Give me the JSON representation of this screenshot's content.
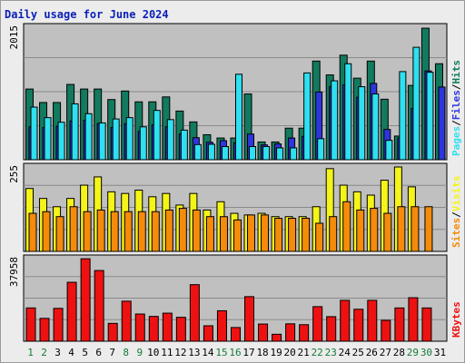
{
  "title": "Daily usage for June 2024",
  "colors": {
    "hits": "#127a5e",
    "files": "#2e35dd",
    "pages": "#2ee0f0",
    "visits": "#f4f419",
    "sites": "#f58b0a",
    "kbytes": "#ee1111",
    "plot_bg": "#c0c0c0",
    "frame_bg": "#ececec",
    "weekend_day": "#157a3a",
    "weekday": "#000000"
  },
  "chart_data": [
    {
      "type": "bar",
      "panel": "hits-files-pages",
      "categories": [
        "1",
        "2",
        "3",
        "4",
        "5",
        "6",
        "7",
        "8",
        "9",
        "10",
        "11",
        "12",
        "13",
        "14",
        "15",
        "16",
        "17",
        "18",
        "19",
        "20",
        "21",
        "22",
        "23",
        "24",
        "25",
        "26",
        "27",
        "28",
        "29",
        "30",
        "31"
      ],
      "ymax_label": "2015",
      "ylim": [
        0,
        2015
      ],
      "right_labels": [
        "Pages",
        "Files",
        "Hits"
      ],
      "series": [
        {
          "name": "Hits",
          "values": [
            1075,
            870,
            870,
            1145,
            1075,
            1075,
            915,
            1045,
            880,
            880,
            955,
            740,
            575,
            380,
            330,
            330,
            1000,
            270,
            270,
            480,
            480,
            1500,
            1290,
            1590,
            1240,
            1500,
            920,
            360,
            1130,
            2000,
            1460
          ]
        },
        {
          "name": "Files",
          "values": [
            500,
            490,
            510,
            590,
            600,
            550,
            490,
            550,
            430,
            530,
            500,
            390,
            335,
            265,
            290,
            260,
            390,
            225,
            240,
            330,
            355,
            1030,
            1110,
            1140,
            950,
            1160,
            460,
            330,
            780,
            1350,
            1105
          ]
        },
        {
          "name": "Pages",
          "values": [
            800,
            640,
            570,
            850,
            700,
            560,
            620,
            640,
            500,
            750,
            610,
            450,
            230,
            235,
            200,
            1300,
            200,
            200,
            180,
            180,
            1320,
            320,
            1200,
            1460,
            1110,
            1000,
            295,
            1340,
            1710,
            1330,
            0
          ]
        }
      ]
    },
    {
      "type": "bar",
      "panel": "visits-sites",
      "categories": [
        "1",
        "2",
        "3",
        "4",
        "5",
        "6",
        "7",
        "8",
        "9",
        "10",
        "11",
        "12",
        "13",
        "14",
        "15",
        "16",
        "17",
        "18",
        "19",
        "20",
        "21",
        "22",
        "23",
        "24",
        "25",
        "26",
        "27",
        "28",
        "29",
        "30",
        "31"
      ],
      "ymax_label": "255",
      "ylim": [
        0,
        255
      ],
      "right_labels": [
        "Sites",
        "Visits"
      ],
      "series": [
        {
          "name": "Visits",
          "values": [
            190,
            160,
            135,
            160,
            200,
            225,
            180,
            175,
            185,
            165,
            175,
            140,
            175,
            125,
            150,
            115,
            110,
            115,
            105,
            105,
            105,
            135,
            250,
            200,
            180,
            170,
            215,
            255,
            195,
            0,
            0
          ]
        },
        {
          "name": "Sites",
          "values": [
            115,
            120,
            105,
            135,
            120,
            125,
            120,
            120,
            120,
            120,
            125,
            130,
            125,
            105,
            105,
            95,
            110,
            110,
            100,
            100,
            100,
            85,
            105,
            150,
            125,
            130,
            115,
            135,
            135,
            135,
            0
          ]
        }
      ]
    },
    {
      "type": "bar",
      "panel": "kbytes",
      "categories": [
        "1",
        "2",
        "3",
        "4",
        "5",
        "6",
        "7",
        "8",
        "9",
        "10",
        "11",
        "12",
        "13",
        "14",
        "15",
        "16",
        "17",
        "18",
        "19",
        "20",
        "21",
        "22",
        "23",
        "24",
        "25",
        "26",
        "27",
        "28",
        "29",
        "30",
        "31"
      ],
      "ymax_label": "37958",
      "ylim": [
        0,
        37958
      ],
      "right_labels": [
        "KBytes"
      ],
      "series": [
        {
          "name": "KBytes",
          "values": [
            15300,
            10500,
            15100,
            27100,
            37900,
            32500,
            8200,
            18400,
            12500,
            11400,
            12900,
            11000,
            26000,
            7100,
            14000,
            6300,
            20500,
            7900,
            3200,
            8000,
            7600,
            15900,
            11300,
            18800,
            14700,
            18800,
            9600,
            15300,
            20000,
            15300,
            0
          ]
        }
      ]
    }
  ]
}
